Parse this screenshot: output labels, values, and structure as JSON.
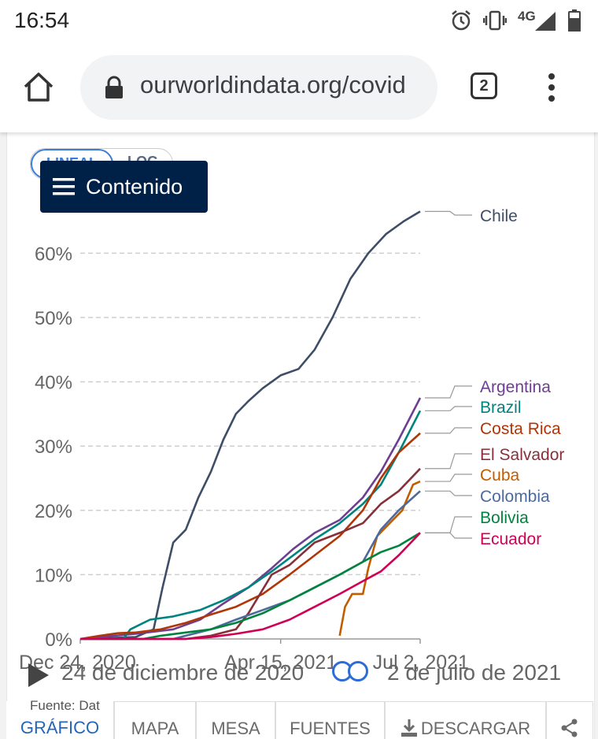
{
  "status_bar": {
    "time": "16:54",
    "network": "4G"
  },
  "browser": {
    "url": "ourworldindata.org/covid",
    "tab_count": "2"
  },
  "scale_toggle": {
    "linear": "LINEAL",
    "log": "LOG"
  },
  "contents_button": {
    "label": "Contenido"
  },
  "timeline": {
    "start_label": "24 de diciembre de 2020",
    "end_label": "2 de julio de 2021"
  },
  "source_text": "Fuente: Dat",
  "bottom_tabs": [
    {
      "label": "GRÁFICO"
    },
    {
      "label": "MAPA"
    },
    {
      "label": "MESA"
    },
    {
      "label": "FUENTES"
    },
    {
      "label": "DESCARGAR"
    }
  ],
  "colors": {
    "grid": "#cfcfcf",
    "axis_text": "#666666",
    "active_tab": "#2466b8",
    "contents_bg": "#002147"
  },
  "chart_data": {
    "type": "line",
    "title": "",
    "xlabel": "",
    "ylabel": "",
    "x_range": [
      "2020-12-24",
      "2021-07-02"
    ],
    "x_ticks": [
      {
        "date": "2020-12-24",
        "label": "Dec 24, 2020"
      },
      {
        "date": "2021-04-15",
        "label": "Apr 15, 2021"
      },
      {
        "date": "2021-07-02",
        "label": "Jul 2, 2021"
      }
    ],
    "ylim": [
      0,
      66
    ],
    "y_ticks": [
      {
        "value": 0,
        "label": "0%"
      },
      {
        "value": 10,
        "label": "10%"
      },
      {
        "value": 20,
        "label": "20%"
      },
      {
        "value": 30,
        "label": "30%"
      },
      {
        "value": 40,
        "label": "40%"
      },
      {
        "value": 50,
        "label": "50%"
      },
      {
        "value": 60,
        "label": "60%"
      }
    ],
    "grid": true,
    "legend": "right, labels at line ends",
    "series": [
      {
        "name": "Chile",
        "color": "#3d4e66",
        "points": [
          [
            "2020-12-24",
            0
          ],
          [
            "2021-01-24",
            0.3
          ],
          [
            "2021-02-03",
            1.5
          ],
          [
            "2021-02-08",
            8
          ],
          [
            "2021-02-14",
            15
          ],
          [
            "2021-02-21",
            17
          ],
          [
            "2021-02-28",
            22
          ],
          [
            "2021-03-07",
            26
          ],
          [
            "2021-03-14",
            31
          ],
          [
            "2021-03-21",
            35
          ],
          [
            "2021-03-28",
            37
          ],
          [
            "2021-04-05",
            39
          ],
          [
            "2021-04-15",
            41
          ],
          [
            "2021-04-25",
            42
          ],
          [
            "2021-05-04",
            45
          ],
          [
            "2021-05-14",
            50
          ],
          [
            "2021-05-24",
            56
          ],
          [
            "2021-06-03",
            60
          ],
          [
            "2021-06-13",
            63
          ],
          [
            "2021-06-23",
            65
          ],
          [
            "2021-07-02",
            66.5
          ]
        ]
      },
      {
        "name": "Argentina",
        "color": "#6d3e91",
        "points": [
          [
            "2020-12-24",
            0
          ],
          [
            "2021-01-04",
            0.3
          ],
          [
            "2021-01-24",
            0.8
          ],
          [
            "2021-02-14",
            1.5
          ],
          [
            "2021-03-01",
            3
          ],
          [
            "2021-03-14",
            5.5
          ],
          [
            "2021-03-28",
            8
          ],
          [
            "2021-04-10",
            11
          ],
          [
            "2021-04-22",
            14
          ],
          [
            "2021-05-04",
            16.5
          ],
          [
            "2021-05-18",
            18.5
          ],
          [
            "2021-05-31",
            22
          ],
          [
            "2021-06-10",
            26
          ],
          [
            "2021-06-20",
            31
          ],
          [
            "2021-07-02",
            37.5
          ]
        ]
      },
      {
        "name": "Brazil",
        "color": "#00847e",
        "points": [
          [
            "2020-12-24",
            0
          ],
          [
            "2021-01-17",
            0
          ],
          [
            "2021-01-21",
            1.5
          ],
          [
            "2021-02-01",
            3
          ],
          [
            "2021-02-14",
            3.5
          ],
          [
            "2021-03-01",
            4.5
          ],
          [
            "2021-03-14",
            6
          ],
          [
            "2021-03-28",
            8
          ],
          [
            "2021-04-10",
            10.5
          ],
          [
            "2021-04-22",
            13
          ],
          [
            "2021-05-04",
            15.5
          ],
          [
            "2021-05-18",
            18
          ],
          [
            "2021-05-31",
            21
          ],
          [
            "2021-06-10",
            24
          ],
          [
            "2021-06-20",
            29
          ],
          [
            "2021-07-02",
            35.5
          ]
        ]
      },
      {
        "name": "Costa Rica",
        "color": "#b13507",
        "points": [
          [
            "2020-12-24",
            0
          ],
          [
            "2021-01-04",
            0.5
          ],
          [
            "2021-01-14",
            0.9
          ],
          [
            "2021-01-24",
            1
          ],
          [
            "2021-02-07",
            1.5
          ],
          [
            "2021-02-21",
            2.5
          ],
          [
            "2021-03-07",
            3.8
          ],
          [
            "2021-03-21",
            5
          ],
          [
            "2021-04-05",
            7
          ],
          [
            "2021-04-20",
            10
          ],
          [
            "2021-05-04",
            13
          ],
          [
            "2021-05-18",
            16
          ],
          [
            "2021-05-31",
            20
          ],
          [
            "2021-06-10",
            25
          ],
          [
            "2021-06-20",
            29
          ],
          [
            "2021-07-02",
            32
          ]
        ]
      },
      {
        "name": "El Salvador",
        "color": "#883039",
        "points": [
          [
            "2020-12-24",
            0
          ],
          [
            "2021-02-21",
            0
          ],
          [
            "2021-03-07",
            0.5
          ],
          [
            "2021-03-21",
            1.5
          ],
          [
            "2021-03-28",
            4
          ],
          [
            "2021-04-10",
            10
          ],
          [
            "2021-04-20",
            11.5
          ],
          [
            "2021-05-04",
            15
          ],
          [
            "2021-05-18",
            16.5
          ],
          [
            "2021-05-31",
            18
          ],
          [
            "2021-06-10",
            21
          ],
          [
            "2021-06-20",
            23
          ],
          [
            "2021-07-02",
            26.5
          ]
        ]
      },
      {
        "name": "Cuba",
        "color": "#c15d00",
        "points": [
          [
            "2021-05-18",
            0.5
          ],
          [
            "2021-05-21",
            5
          ],
          [
            "2021-05-25",
            7
          ],
          [
            "2021-05-31",
            7
          ],
          [
            "2021-06-03",
            11
          ],
          [
            "2021-06-08",
            16
          ],
          [
            "2021-06-15",
            18
          ],
          [
            "2021-06-22",
            20
          ],
          [
            "2021-06-28",
            24
          ],
          [
            "2021-07-02",
            24.5
          ]
        ]
      },
      {
        "name": "Colombia",
        "color": "#4c6a9c",
        "points": [
          [
            "2020-12-24",
            0
          ],
          [
            "2021-02-14",
            0
          ],
          [
            "2021-02-21",
            0.5
          ],
          [
            "2021-03-07",
            1.5
          ],
          [
            "2021-03-21",
            3
          ],
          [
            "2021-04-05",
            4.5
          ],
          [
            "2021-04-20",
            6
          ],
          [
            "2021-05-04",
            8
          ],
          [
            "2021-05-18",
            10
          ],
          [
            "2021-05-31",
            12
          ],
          [
            "2021-06-10",
            17
          ],
          [
            "2021-06-20",
            20
          ],
          [
            "2021-07-02",
            23
          ]
        ]
      },
      {
        "name": "Bolivia",
        "color": "#00843d",
        "points": [
          [
            "2020-12-24",
            0
          ],
          [
            "2021-01-28",
            0
          ],
          [
            "2021-02-07",
            0.5
          ],
          [
            "2021-02-21",
            1
          ],
          [
            "2021-03-07",
            1.5
          ],
          [
            "2021-03-21",
            2.5
          ],
          [
            "2021-04-05",
            4
          ],
          [
            "2021-04-20",
            6
          ],
          [
            "2021-05-04",
            8
          ],
          [
            "2021-05-18",
            10
          ],
          [
            "2021-05-31",
            12
          ],
          [
            "2021-06-10",
            13.5
          ],
          [
            "2021-06-20",
            14.5
          ],
          [
            "2021-07-02",
            16.5
          ]
        ]
      },
      {
        "name": "Ecuador",
        "color": "#d10056",
        "points": [
          [
            "2020-12-24",
            0
          ],
          [
            "2021-02-21",
            0
          ],
          [
            "2021-03-07",
            0.3
          ],
          [
            "2021-03-21",
            0.8
          ],
          [
            "2021-04-05",
            1.5
          ],
          [
            "2021-04-20",
            3
          ],
          [
            "2021-05-04",
            5
          ],
          [
            "2021-05-18",
            7
          ],
          [
            "2021-05-31",
            9
          ],
          [
            "2021-06-10",
            10.5
          ],
          [
            "2021-06-20",
            13
          ],
          [
            "2021-07-02",
            16.5
          ]
        ]
      }
    ]
  }
}
